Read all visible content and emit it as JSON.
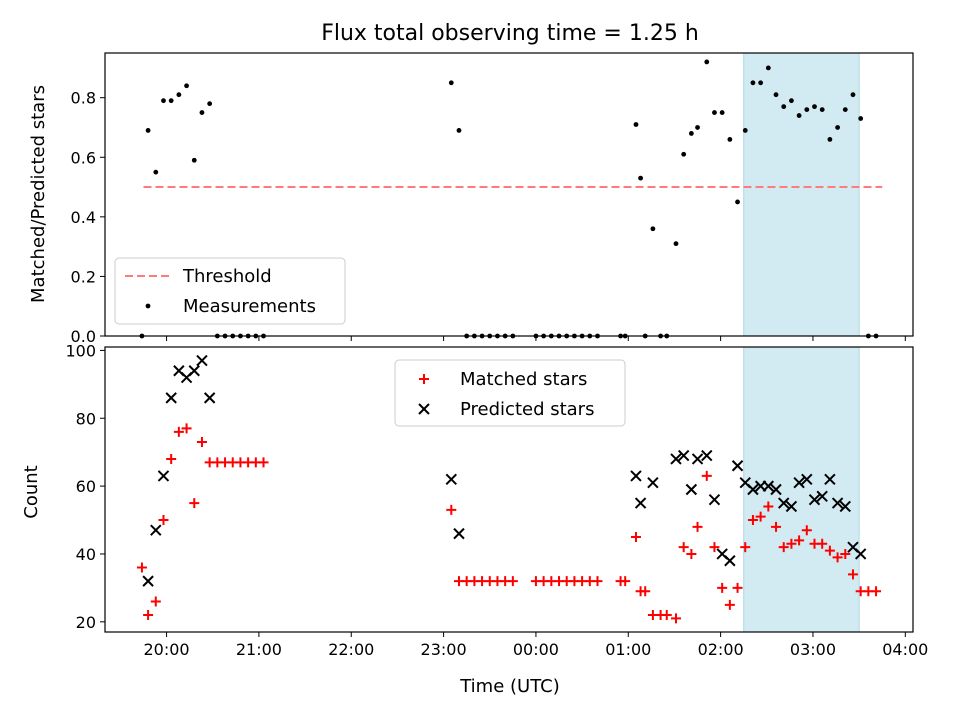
{
  "figure": {
    "title": "Flux total observing time = 1.25 h",
    "xlabel": "Time (UTC)"
  },
  "x_ticks": [
    "20:00",
    "21:00",
    "22:00",
    "23:00",
    "00:00",
    "01:00",
    "02:00",
    "03:00",
    "04:00"
  ],
  "colors": {
    "threshold": "#ff7b7b",
    "measurements": "#000000",
    "matched": "#ff0000",
    "predicted": "#000000",
    "highlight": "#add8e6"
  },
  "chart_data": [
    {
      "type": "scatter",
      "ylabel": "Matched/Predicted stars",
      "ylim": [
        0,
        0.95
      ],
      "y_ticks": [
        0.0,
        0.2,
        0.4,
        0.6,
        0.8
      ],
      "xlim": [
        "19:20",
        "04:05"
      ],
      "highlight_span": [
        "02:15",
        "03:30"
      ],
      "legend_position": "lower-left",
      "threshold": {
        "name": "Threshold",
        "value": 0.5,
        "x_range": [
          "19:45",
          "03:45"
        ]
      },
      "series": [
        {
          "name": "Measurements",
          "points": [
            [
              "19:44",
              0.0
            ],
            [
              "19:48",
              0.69
            ],
            [
              "19:53",
              0.55
            ],
            [
              "19:58",
              0.79
            ],
            [
              "20:03",
              0.79
            ],
            [
              "20:08",
              0.81
            ],
            [
              "20:13",
              0.84
            ],
            [
              "20:18",
              0.59
            ],
            [
              "20:23",
              0.75
            ],
            [
              "20:28",
              0.78
            ],
            [
              "20:33",
              0.0
            ],
            [
              "20:38",
              0.0
            ],
            [
              "20:43",
              0.0
            ],
            [
              "20:48",
              0.0
            ],
            [
              "20:53",
              0.0
            ],
            [
              "20:58",
              0.0
            ],
            [
              "21:03",
              0.0
            ],
            [
              "23:05",
              0.85
            ],
            [
              "23:10",
              0.69
            ],
            [
              "23:15",
              0.0
            ],
            [
              "23:20",
              0.0
            ],
            [
              "23:25",
              0.0
            ],
            [
              "23:30",
              0.0
            ],
            [
              "23:35",
              0.0
            ],
            [
              "23:40",
              0.0
            ],
            [
              "23:45",
              0.0
            ],
            [
              "00:00",
              0.0
            ],
            [
              "00:05",
              0.0
            ],
            [
              "00:10",
              0.0
            ],
            [
              "00:15",
              0.0
            ],
            [
              "00:20",
              0.0
            ],
            [
              "00:25",
              0.0
            ],
            [
              "00:30",
              0.0
            ],
            [
              "00:35",
              0.0
            ],
            [
              "00:40",
              0.0
            ],
            [
              "00:55",
              0.0
            ],
            [
              "00:58",
              0.0
            ],
            [
              "01:05",
              0.71
            ],
            [
              "01:08",
              0.53
            ],
            [
              "01:11",
              0.0
            ],
            [
              "01:16",
              0.36
            ],
            [
              "01:21",
              0.0
            ],
            [
              "01:25",
              0.0
            ],
            [
              "01:31",
              0.31
            ],
            [
              "01:36",
              0.61
            ],
            [
              "01:41",
              0.68
            ],
            [
              "01:45",
              0.7
            ],
            [
              "01:51",
              0.92
            ],
            [
              "01:56",
              0.75
            ],
            [
              "02:01",
              0.75
            ],
            [
              "02:06",
              0.66
            ],
            [
              "02:11",
              0.45
            ],
            [
              "02:16",
              0.69
            ],
            [
              "02:21",
              0.85
            ],
            [
              "02:26",
              0.85
            ],
            [
              "02:31",
              0.9
            ],
            [
              "02:36",
              0.81
            ],
            [
              "02:41",
              0.77
            ],
            [
              "02:46",
              0.79
            ],
            [
              "02:51",
              0.74
            ],
            [
              "02:56",
              0.76
            ],
            [
              "03:01",
              0.77
            ],
            [
              "03:06",
              0.76
            ],
            [
              "03:11",
              0.66
            ],
            [
              "03:16",
              0.7
            ],
            [
              "03:21",
              0.76
            ],
            [
              "03:26",
              0.81
            ],
            [
              "03:31",
              0.73
            ],
            [
              "03:36",
              0.0
            ],
            [
              "03:41",
              0.0
            ]
          ]
        }
      ]
    },
    {
      "type": "scatter",
      "ylabel": "Count",
      "ylim": [
        17,
        101
      ],
      "y_ticks": [
        20,
        40,
        60,
        80,
        100
      ],
      "xlim": [
        "19:20",
        "04:05"
      ],
      "highlight_span": [
        "02:15",
        "03:30"
      ],
      "legend_position": "upper-center",
      "series": [
        {
          "name": "Matched stars",
          "marker": "+",
          "points": [
            [
              "19:44",
              36
            ],
            [
              "19:48",
              22
            ],
            [
              "19:53",
              26
            ],
            [
              "19:58",
              50
            ],
            [
              "20:03",
              68
            ],
            [
              "20:08",
              76
            ],
            [
              "20:13",
              77
            ],
            [
              "20:18",
              55
            ],
            [
              "20:23",
              73
            ],
            [
              "20:28",
              67
            ],
            [
              "20:33",
              67
            ],
            [
              "20:38",
              67
            ],
            [
              "20:43",
              67
            ],
            [
              "20:48",
              67
            ],
            [
              "20:53",
              67
            ],
            [
              "20:58",
              67
            ],
            [
              "21:03",
              67
            ],
            [
              "23:05",
              53
            ],
            [
              "23:10",
              32
            ],
            [
              "23:15",
              32
            ],
            [
              "23:20",
              32
            ],
            [
              "23:25",
              32
            ],
            [
              "23:30",
              32
            ],
            [
              "23:35",
              32
            ],
            [
              "23:40",
              32
            ],
            [
              "23:45",
              32
            ],
            [
              "00:00",
              32
            ],
            [
              "00:05",
              32
            ],
            [
              "00:10",
              32
            ],
            [
              "00:15",
              32
            ],
            [
              "00:20",
              32
            ],
            [
              "00:25",
              32
            ],
            [
              "00:30",
              32
            ],
            [
              "00:35",
              32
            ],
            [
              "00:40",
              32
            ],
            [
              "00:55",
              32
            ],
            [
              "00:58",
              32
            ],
            [
              "01:05",
              45
            ],
            [
              "01:08",
              29
            ],
            [
              "01:11",
              29
            ],
            [
              "01:16",
              22
            ],
            [
              "01:21",
              22
            ],
            [
              "01:25",
              22
            ],
            [
              "01:31",
              21
            ],
            [
              "01:36",
              42
            ],
            [
              "01:41",
              40
            ],
            [
              "01:45",
              48
            ],
            [
              "01:51",
              63
            ],
            [
              "01:56",
              42
            ],
            [
              "02:01",
              30
            ],
            [
              "02:06",
              25
            ],
            [
              "02:11",
              30
            ],
            [
              "02:16",
              42
            ],
            [
              "02:21",
              50
            ],
            [
              "02:26",
              51
            ],
            [
              "02:31",
              54
            ],
            [
              "02:36",
              48
            ],
            [
              "02:41",
              42
            ],
            [
              "02:46",
              43
            ],
            [
              "02:51",
              44
            ],
            [
              "02:56",
              47
            ],
            [
              "03:01",
              43
            ],
            [
              "03:06",
              43
            ],
            [
              "03:11",
              41
            ],
            [
              "03:16",
              39
            ],
            [
              "03:21",
              40
            ],
            [
              "03:26",
              34
            ],
            [
              "03:31",
              29
            ],
            [
              "03:36",
              29
            ],
            [
              "03:41",
              29
            ]
          ]
        },
        {
          "name": "Predicted stars",
          "marker": "x",
          "points": [
            [
              "19:48",
              32
            ],
            [
              "19:53",
              47
            ],
            [
              "19:58",
              63
            ],
            [
              "20:03",
              86
            ],
            [
              "20:08",
              94
            ],
            [
              "20:13",
              92
            ],
            [
              "20:18",
              94
            ],
            [
              "20:23",
              97
            ],
            [
              "20:28",
              86
            ],
            [
              "23:05",
              62
            ],
            [
              "23:10",
              46
            ],
            [
              "01:05",
              63
            ],
            [
              "01:08",
              55
            ],
            [
              "01:16",
              61
            ],
            [
              "01:31",
              68
            ],
            [
              "01:36",
              69
            ],
            [
              "01:41",
              59
            ],
            [
              "01:45",
              68
            ],
            [
              "01:51",
              69
            ],
            [
              "01:56",
              56
            ],
            [
              "02:01",
              40
            ],
            [
              "02:06",
              38
            ],
            [
              "02:11",
              66
            ],
            [
              "02:16",
              61
            ],
            [
              "02:21",
              59
            ],
            [
              "02:26",
              60
            ],
            [
              "02:31",
              60
            ],
            [
              "02:36",
              59
            ],
            [
              "02:41",
              55
            ],
            [
              "02:46",
              54
            ],
            [
              "02:51",
              61
            ],
            [
              "02:56",
              62
            ],
            [
              "03:01",
              56
            ],
            [
              "03:06",
              57
            ],
            [
              "03:11",
              62
            ],
            [
              "03:16",
              55
            ],
            [
              "03:21",
              54
            ],
            [
              "03:26",
              42
            ],
            [
              "03:31",
              40
            ]
          ]
        }
      ]
    }
  ]
}
